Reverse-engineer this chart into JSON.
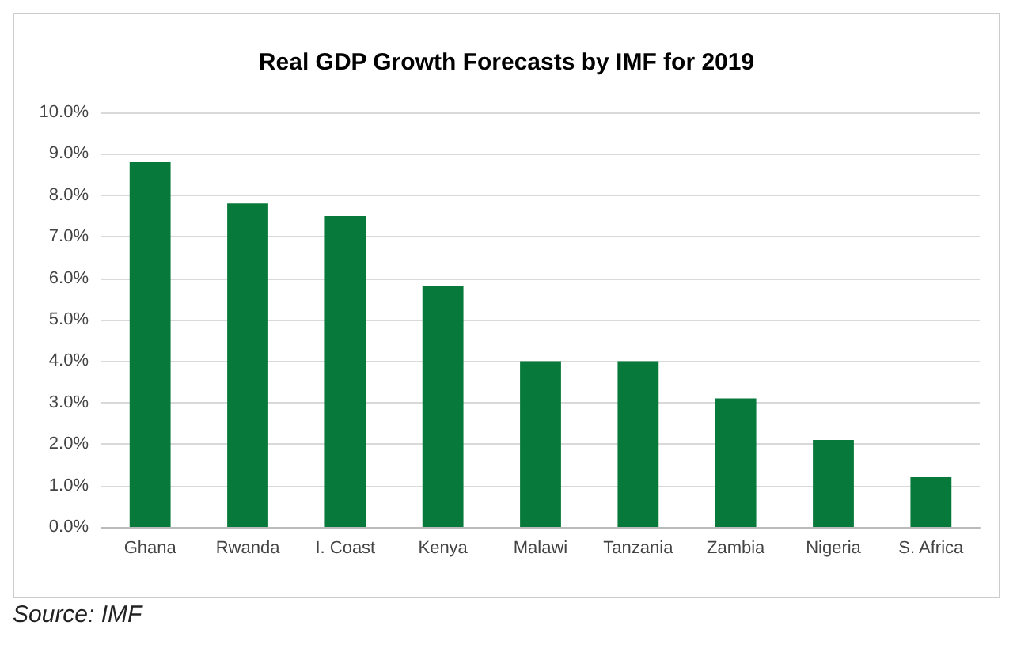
{
  "chart_data": {
    "type": "bar",
    "title": "Real GDP Growth Forecasts by IMF for 2019",
    "categories": [
      "Ghana",
      "Rwanda",
      "I. Coast",
      "Kenya",
      "Malawi",
      "Tanzania",
      "Zambia",
      "Nigeria",
      "S. Africa"
    ],
    "values": [
      8.8,
      7.8,
      7.5,
      5.8,
      4.0,
      4.0,
      3.1,
      2.1,
      1.2
    ],
    "color": "#077a3b",
    "ylim": [
      0,
      10
    ],
    "yticks": [
      {
        "value": 0,
        "label": "0.0%"
      },
      {
        "value": 1,
        "label": "1.0%"
      },
      {
        "value": 2,
        "label": "2.0%"
      },
      {
        "value": 3,
        "label": "3.0%"
      },
      {
        "value": 4,
        "label": "4.0%"
      },
      {
        "value": 5,
        "label": "5.0%"
      },
      {
        "value": 6,
        "label": "6.0%"
      },
      {
        "value": 7,
        "label": "7.0%"
      },
      {
        "value": 8,
        "label": "8.0%"
      },
      {
        "value": 9,
        "label": "9.0%"
      },
      {
        "value": 10,
        "label": "10.0%"
      }
    ],
    "grid": "y",
    "annotations": [
      "Source: IMF"
    ]
  }
}
